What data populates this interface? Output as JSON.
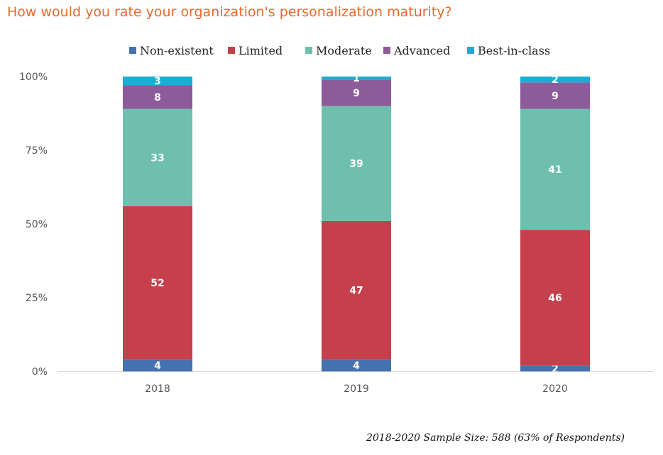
{
  "chart_data": {
    "type": "bar",
    "stacked": true,
    "title": "How would you rate your organization's personalization maturity?",
    "categories": [
      "2018",
      "2019",
      "2020"
    ],
    "series": [
      {
        "name": "Non-existent",
        "color": "#4472B0",
        "values": [
          4,
          4,
          2
        ]
      },
      {
        "name": "Limited",
        "color": "#C5404C",
        "values": [
          52,
          47,
          46
        ]
      },
      {
        "name": "Moderate",
        "color": "#6EBFAD",
        "values": [
          33,
          39,
          41
        ]
      },
      {
        "name": "Advanced",
        "color": "#8C5B9A",
        "values": [
          8,
          9,
          9
        ]
      },
      {
        "name": "Best-in-class",
        "color": "#17AFD3",
        "values": [
          3,
          1,
          2
        ]
      }
    ],
    "yticks": [
      "0%",
      "25%",
      "50%",
      "75%",
      "100%"
    ],
    "ylim": [
      0,
      100
    ],
    "legend_position": "top",
    "footnote": "2018-2020 Sample Size: 588 (63% of Respondents)"
  }
}
